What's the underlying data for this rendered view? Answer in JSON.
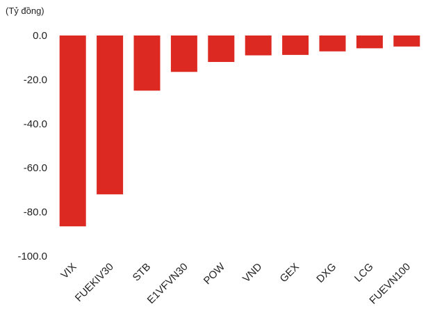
{
  "chart_data": {
    "type": "bar",
    "unit_label": "(Tỷ đồng)",
    "categories": [
      "VIX",
      "FUEKIV30",
      "STB",
      "E1VFVN30",
      "POW",
      "VND",
      "GEX",
      "DXG",
      "LCG",
      "FUEVN100"
    ],
    "values": [
      -86.5,
      -72.0,
      -25.0,
      -16.5,
      -12.0,
      -9.0,
      -8.8,
      -7.2,
      -5.8,
      -5.0
    ],
    "ylim": [
      -100,
      0
    ],
    "y_ticks": [
      0,
      -20,
      -40,
      -60,
      -80,
      -100
    ],
    "y_tick_labels": [
      "0.0",
      "-20.0",
      "-40.0",
      "-60.0",
      "-80.0",
      "-100.0"
    ],
    "grid": false,
    "bar_color": "#dc2a22"
  }
}
